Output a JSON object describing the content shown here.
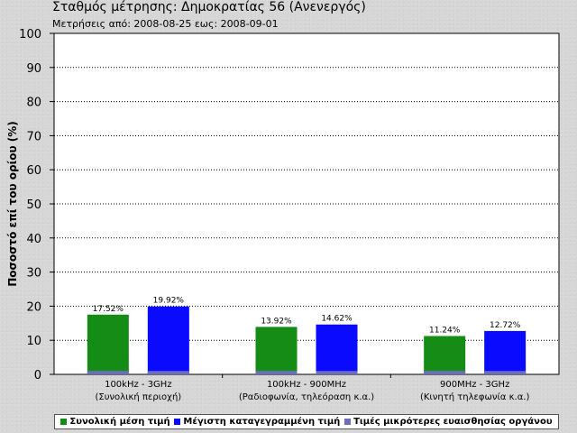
{
  "title": "Σταθμός μέτρησης: Δημοκρατίας 56 (Ανενεργός)",
  "subtitle": "Μετρήσεις από: 2008-08-25 εως: 2008-09-01",
  "colors": {
    "mean": "#158c15",
    "max": "#0a0aff",
    "sensitivity": "#6d6dbe",
    "grid": "#000000",
    "plot_bg": "#ffffff"
  },
  "chart_data": {
    "type": "bar",
    "ylabel": "Ποσοστό επί του ορίου (%)",
    "ylim": [
      0,
      100
    ],
    "yticks": [
      0,
      10,
      20,
      30,
      40,
      50,
      60,
      70,
      80,
      90,
      100
    ],
    "grid": true,
    "legend_position": "bottom",
    "categories": [
      {
        "line1": "100kHz - 3GHz",
        "line2": "(Συνολική περιοχή)"
      },
      {
        "line1": "100kHz - 900MHz",
        "line2": "(Ραδιοφωνία, τηλεόραση κ.α.)"
      },
      {
        "line1": "900MHz - 3GHz",
        "line2": "(Κινητή τηλεφωνία κ.α.)"
      }
    ],
    "series": [
      {
        "name": "Συνολική μέση τιμή",
        "values": [
          17.52,
          13.92,
          11.24
        ],
        "labels": [
          "17.52%",
          "13.92%",
          "11.24%"
        ]
      },
      {
        "name": "Μέγιστη καταγεγραμμένη τιμή",
        "values": [
          19.92,
          14.62,
          12.72
        ],
        "labels": [
          "19.92%",
          "14.62%",
          "12.72%"
        ]
      },
      {
        "name": "Τιμές μικρότερες ευαισθησίας οργάνου",
        "values": [
          1.0,
          1.0,
          1.0
        ]
      }
    ]
  }
}
